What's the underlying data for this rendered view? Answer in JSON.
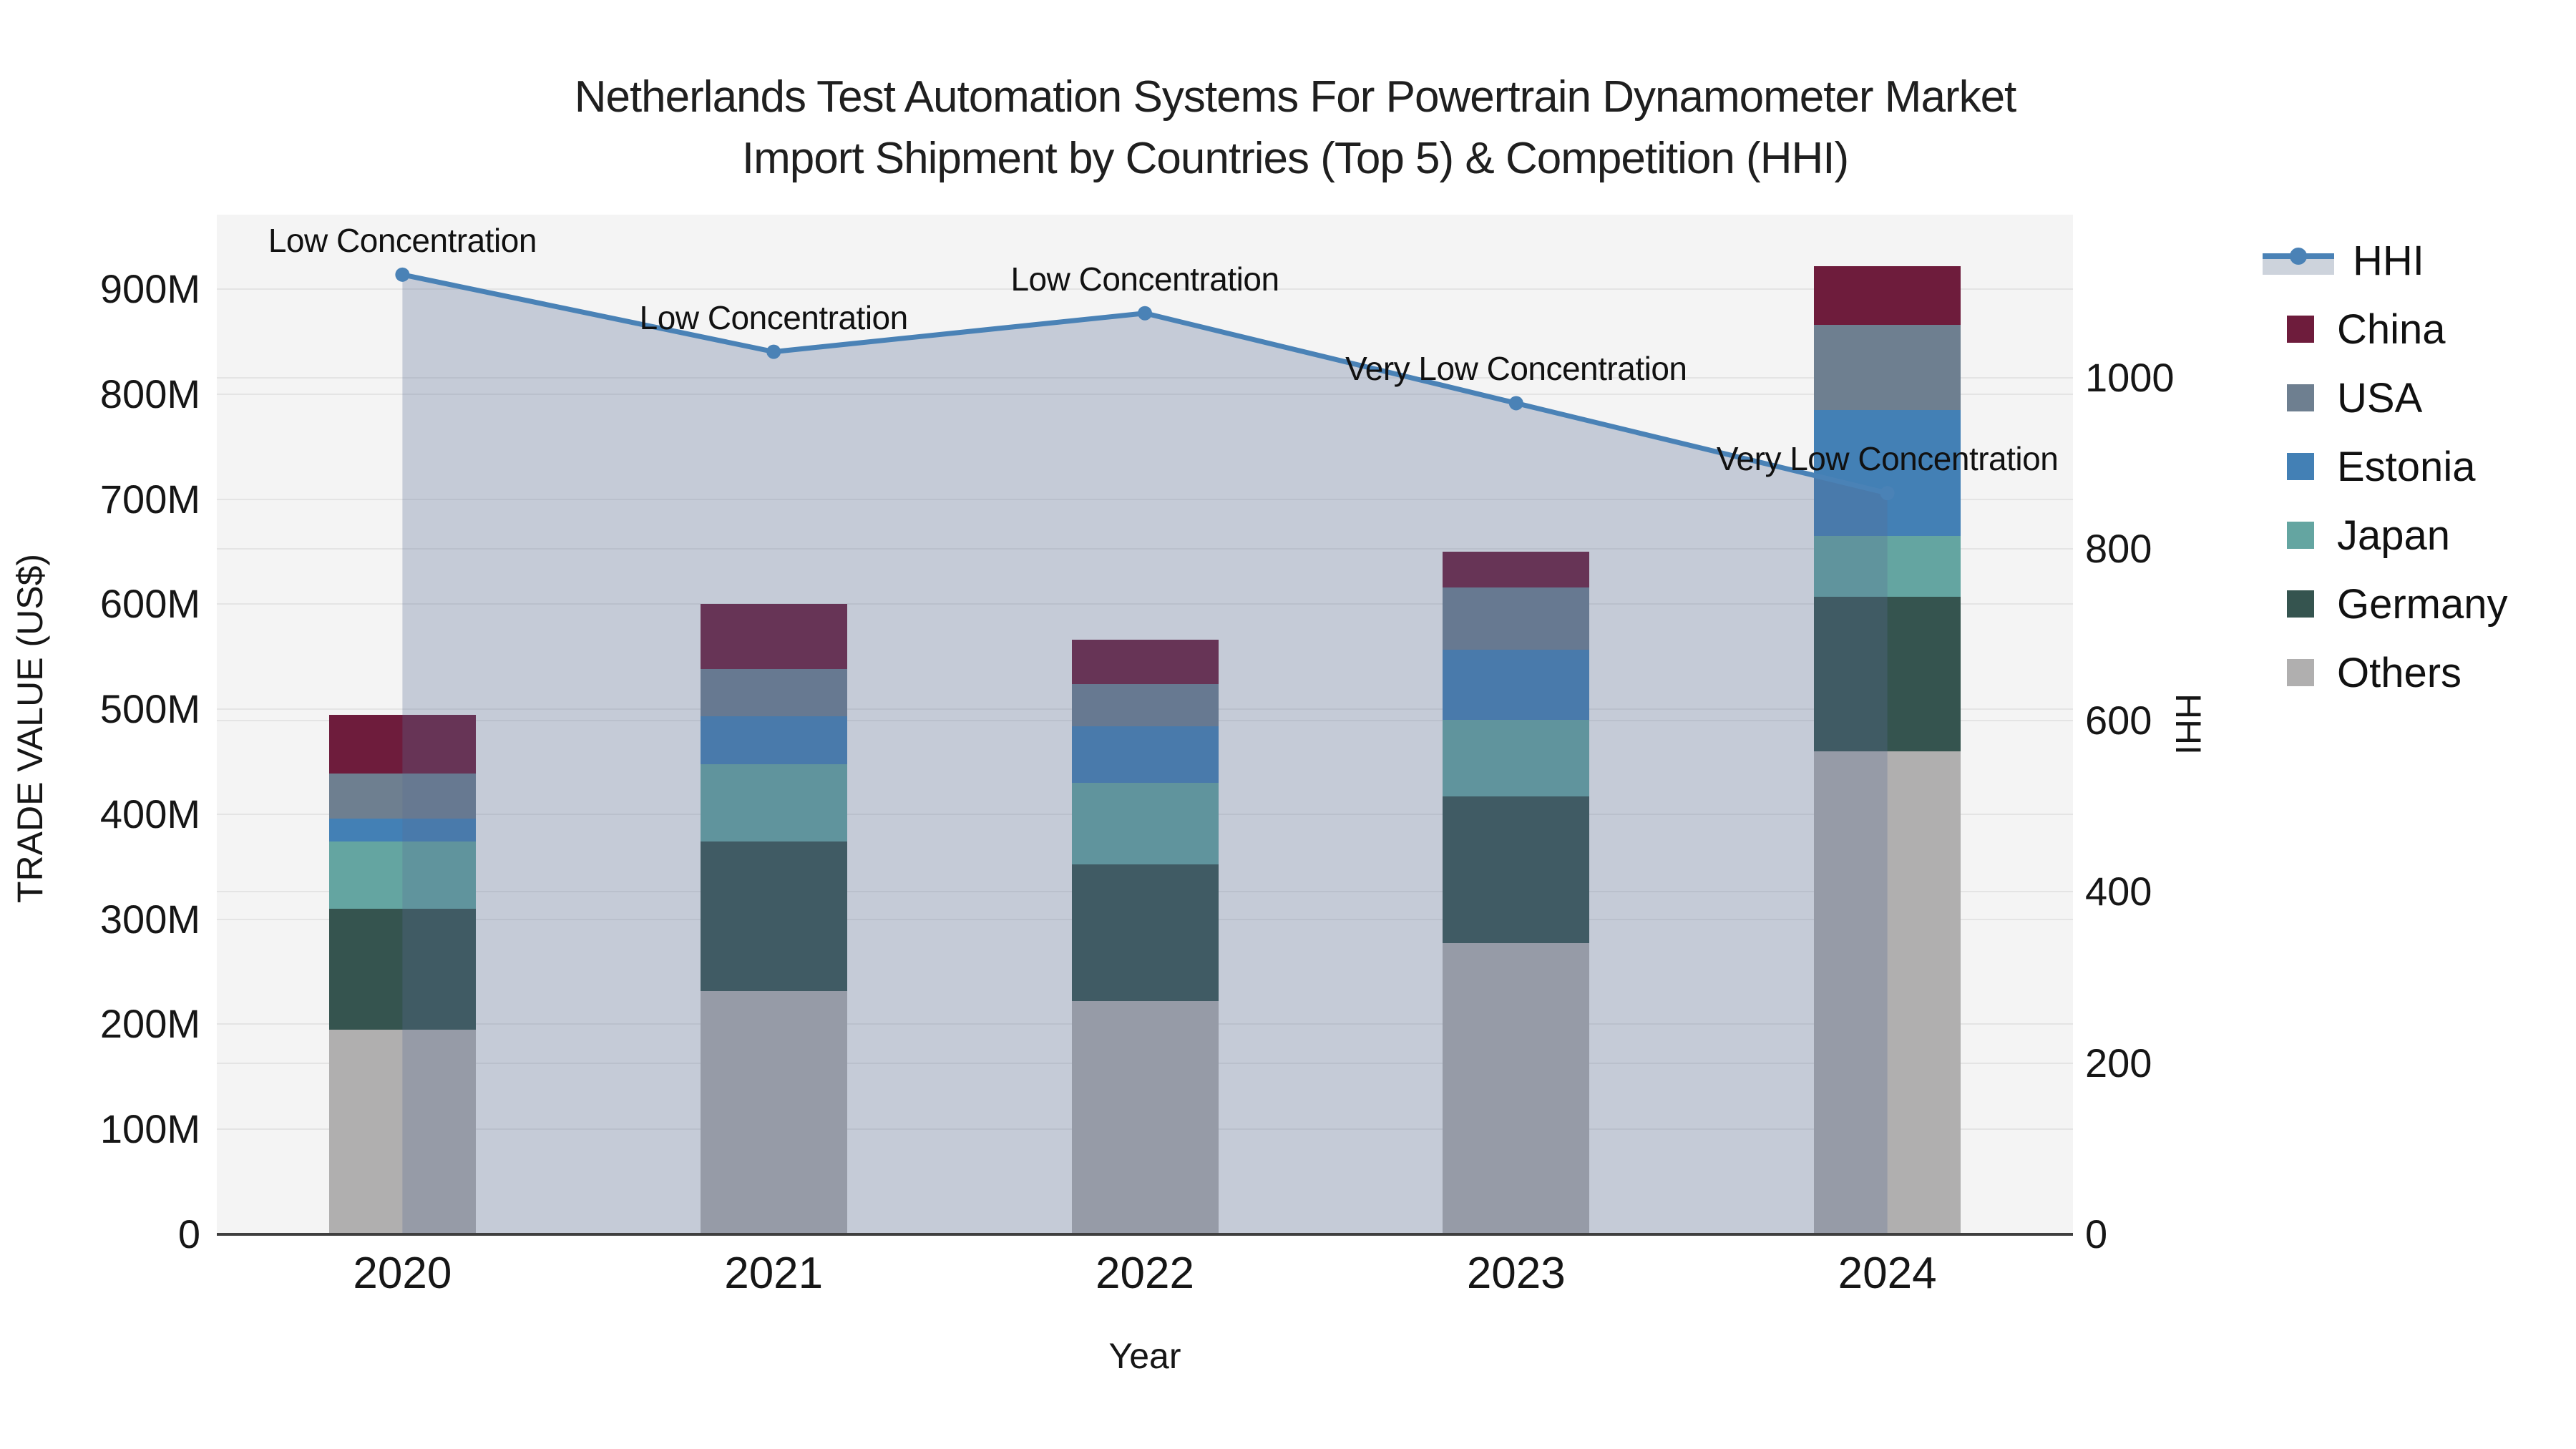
{
  "title": {
    "line1": "Netherlands Test Automation Systems For Powertrain Dynamometer Market",
    "line2": "Import Shipment by Countries (Top 5) & Competition (HHI)"
  },
  "axes": {
    "x": {
      "title": "Year",
      "ticks": [
        "2020",
        "2021",
        "2022",
        "2023",
        "2024"
      ]
    },
    "left": {
      "title": "TRADE VALUE (US$)",
      "range": [
        0,
        971
      ],
      "ticks": [
        {
          "label": "0",
          "value": 0
        },
        {
          "label": "100M",
          "value": 100
        },
        {
          "label": "200M",
          "value": 200
        },
        {
          "label": "300M",
          "value": 300
        },
        {
          "label": "400M",
          "value": 400
        },
        {
          "label": "500M",
          "value": 500
        },
        {
          "label": "600M",
          "value": 600
        },
        {
          "label": "700M",
          "value": 700
        },
        {
          "label": "800M",
          "value": 800
        },
        {
          "label": "900M",
          "value": 900
        }
      ]
    },
    "right": {
      "title": "HHI",
      "range": [
        0,
        1190
      ],
      "ticks": [
        {
          "label": "0",
          "value": 0
        },
        {
          "label": "200",
          "value": 200
        },
        {
          "label": "400",
          "value": 400
        },
        {
          "label": "600",
          "value": 600
        },
        {
          "label": "800",
          "value": 800
        },
        {
          "label": "1000",
          "value": 1000
        }
      ]
    }
  },
  "chart_data": {
    "type": "bar+line",
    "title": "Netherlands Test Automation Systems For Powertrain Dynamometer Market Import Shipment by Countries (Top 5) & Competition (HHI)",
    "xlabel": "Year",
    "ylabel_left": "TRADE VALUE (US$)",
    "ylabel_right": "HHI",
    "categories": [
      "2020",
      "2021",
      "2022",
      "2023",
      "2024"
    ],
    "bar_unit": "M US$",
    "bar_series": [
      {
        "name": "China",
        "color": "#6e1c3c",
        "values": [
          56,
          62,
          42,
          34,
          56
        ]
      },
      {
        "name": "USA",
        "color": "#6e7f90",
        "values": [
          43,
          45,
          40,
          59,
          81
        ]
      },
      {
        "name": "Estonia",
        "color": "#4380b5",
        "values": [
          22,
          45,
          54,
          67,
          120
        ]
      },
      {
        "name": "Japan",
        "color": "#64a5a1",
        "values": [
          64,
          74,
          78,
          73,
          58
        ]
      },
      {
        "name": "Germany",
        "color": "#35544f",
        "values": [
          115,
          142,
          130,
          140,
          147
        ]
      },
      {
        "name": "Others",
        "color": "#b0afaf",
        "values": [
          195,
          232,
          222,
          277,
          460
        ]
      }
    ],
    "bar_totals": [
      495,
      600,
      566,
      650,
      922
    ],
    "stack_order_bottom_to_top": [
      "Others",
      "Germany",
      "Japan",
      "Estonia",
      "USA",
      "China"
    ],
    "line_series": {
      "name": "HHI",
      "axis": "right",
      "color": "#4a82b6",
      "fill_color": "rgba(88,108,148,0.30)",
      "values": [
        1120,
        1030,
        1075,
        970,
        865
      ]
    },
    "annotations": [
      {
        "category": "2020",
        "text": "Low Concentration"
      },
      {
        "category": "2021",
        "text": "Low Concentration"
      },
      {
        "category": "2022",
        "text": "Low Concentration"
      },
      {
        "category": "2023",
        "text": "Very Low Concentration"
      },
      {
        "category": "2024",
        "text": "Very Low Concentration"
      }
    ],
    "legend_position": "right",
    "grid": true
  },
  "legend": {
    "items": [
      {
        "label": "HHI",
        "type": "line",
        "color": "#4a82b6"
      },
      {
        "label": "China",
        "type": "swatch",
        "color": "#6e1c3c"
      },
      {
        "label": "USA",
        "type": "swatch",
        "color": "#6e7f90"
      },
      {
        "label": "Estonia",
        "type": "swatch",
        "color": "#4380b5"
      },
      {
        "label": "Japan",
        "type": "swatch",
        "color": "#64a5a1"
      },
      {
        "label": "Germany",
        "type": "swatch",
        "color": "#35544f"
      },
      {
        "label": "Others",
        "type": "swatch",
        "color": "#b0afaf"
      }
    ]
  },
  "colors": {
    "figure_bg": "#ffffff",
    "plot_bg": "#f4f4f4",
    "gridline": "#e4e4e4",
    "axis_line": "#3f3f3f",
    "text": "#161616"
  }
}
